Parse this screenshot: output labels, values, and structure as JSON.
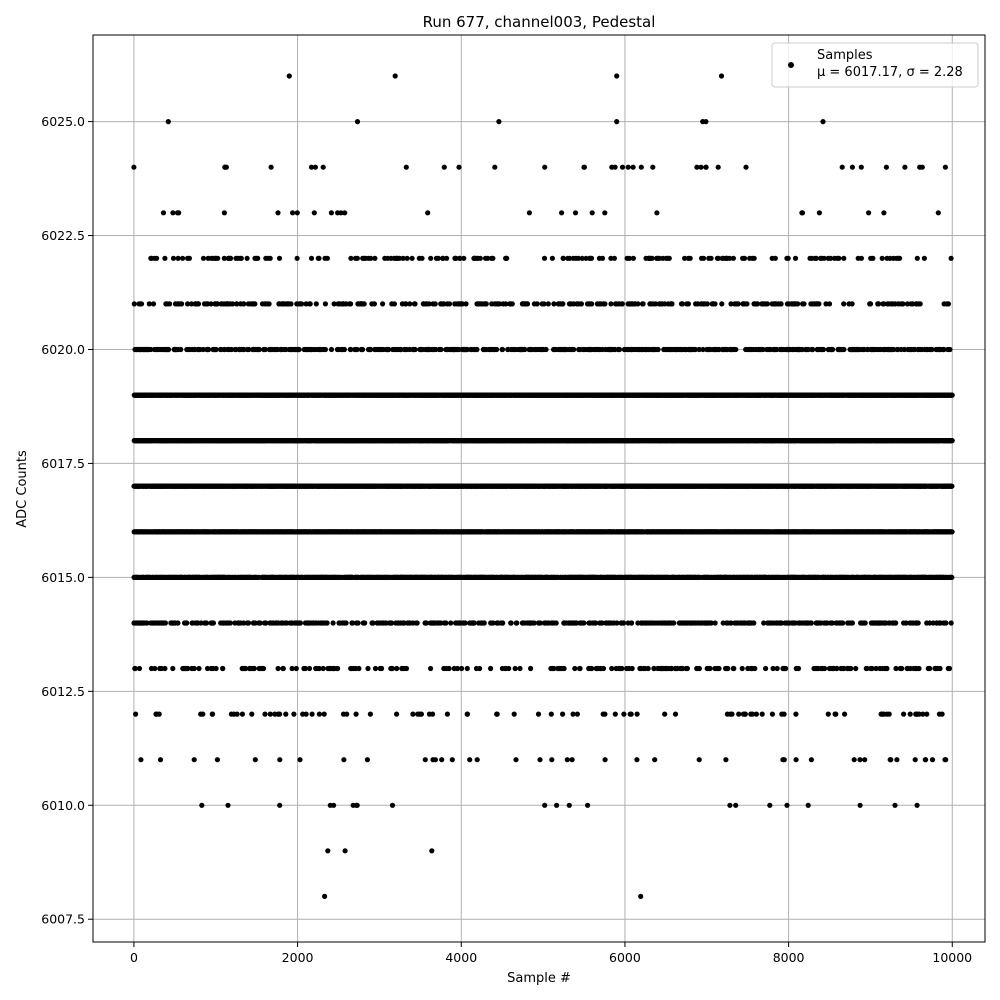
{
  "chart_data": {
    "type": "scatter",
    "title": "Run 677, channel003, Pedestal",
    "xlabel": "Sample #",
    "ylabel": "ADC Counts",
    "xlim": [
      -500,
      10400
    ],
    "ylim": [
      6007.0,
      6026.9
    ],
    "xticks": [
      0,
      2000,
      4000,
      6000,
      8000,
      10000
    ],
    "xtick_labels": [
      "0",
      "2000",
      "4000",
      "6000",
      "8000",
      "10000"
    ],
    "yticks": [
      6007.5,
      6010.0,
      6012.5,
      6015.0,
      6017.5,
      6020.0,
      6022.5,
      6025.0
    ],
    "ytick_labels": [
      "6007.5",
      "6010.0",
      "6012.5",
      "6015.0",
      "6017.5",
      "6020.0",
      "6022.5",
      "6025.0"
    ],
    "grid": true,
    "legend": {
      "position": "top-right",
      "marker": "black dot"
    },
    "series": [
      {
        "name": "Samples",
        "stats_label": "μ = 6017.17, σ = 2.28",
        "color": "#000000",
        "n_samples": 10000,
        "mean": 6017.17,
        "std": 2.28,
        "density_by_level": [
          {
            "y": 6026,
            "density": 0.0002
          },
          {
            "y": 6025,
            "density": 0.0005
          },
          {
            "y": 6024,
            "density": 0.002
          },
          {
            "y": 6023,
            "density": 0.005
          },
          {
            "y": 6022,
            "density": 0.025
          },
          {
            "y": 6021,
            "density": 0.05
          },
          {
            "y": 6020,
            "density": 0.09
          },
          {
            "y": 6019,
            "density": 0.3
          },
          {
            "y": 6018,
            "density": 0.3
          },
          {
            "y": 6017,
            "density": 0.3
          },
          {
            "y": 6016,
            "density": 0.3
          },
          {
            "y": 6015,
            "density": 0.2
          },
          {
            "y": 6014,
            "density": 0.07
          },
          {
            "y": 6013,
            "density": 0.04
          },
          {
            "y": 6012,
            "density": 0.015
          },
          {
            "y": 6011,
            "density": 0.005
          },
          {
            "y": 6010,
            "density": 0.001
          },
          {
            "y": 6009,
            "density": 0.0001
          },
          {
            "y": 6008,
            "density": 0.0001
          }
        ],
        "sparse_points": [
          {
            "x": 5900,
            "y": 6026
          },
          {
            "x": 7180,
            "y": 6026
          },
          {
            "x": 420,
            "y": 6025
          },
          {
            "x": 4460,
            "y": 6025
          },
          {
            "x": 5900,
            "y": 6025
          },
          {
            "x": 6950,
            "y": 6025
          },
          {
            "x": 6990,
            "y": 6025
          },
          {
            "x": 8420,
            "y": 6025
          },
          {
            "x": 0,
            "y": 6024
          },
          {
            "x": 1110,
            "y": 6024
          },
          {
            "x": 1130,
            "y": 6024
          },
          {
            "x": 2170,
            "y": 6024
          },
          {
            "x": 4410,
            "y": 6024
          },
          {
            "x": 5500,
            "y": 6024
          },
          {
            "x": 5840,
            "y": 6024
          },
          {
            "x": 5880,
            "y": 6024
          },
          {
            "x": 5970,
            "y": 6024
          },
          {
            "x": 6040,
            "y": 6024
          },
          {
            "x": 6100,
            "y": 6024
          },
          {
            "x": 6340,
            "y": 6024
          },
          {
            "x": 6880,
            "y": 6024
          },
          {
            "x": 6930,
            "y": 6024
          },
          {
            "x": 6990,
            "y": 6024
          },
          {
            "x": 7140,
            "y": 6024
          },
          {
            "x": 8780,
            "y": 6024
          },
          {
            "x": 2330,
            "y": 6008
          },
          {
            "x": 2580,
            "y": 6009
          },
          {
            "x": 830,
            "y": 6010
          },
          {
            "x": 1150,
            "y": 6010
          },
          {
            "x": 2400,
            "y": 6010
          },
          {
            "x": 2440,
            "y": 6010
          },
          {
            "x": 2680,
            "y": 6010
          },
          {
            "x": 2720,
            "y": 6010
          },
          {
            "x": 3160,
            "y": 6010
          },
          {
            "x": 5020,
            "y": 6010
          },
          {
            "x": 5320,
            "y": 6010
          },
          {
            "x": 7770,
            "y": 6010
          },
          {
            "x": 7980,
            "y": 6010
          },
          {
            "x": 8240,
            "y": 6010
          },
          {
            "x": 9570,
            "y": 6010
          }
        ]
      }
    ]
  }
}
